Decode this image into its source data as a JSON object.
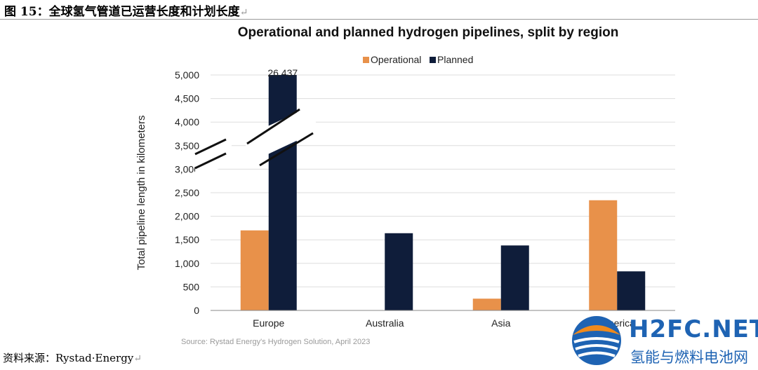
{
  "figure": {
    "caption": "图 15：全球氢气管道已运营长度和计划长度",
    "return_mark": "↵",
    "source_line": "资料来源：Rystad·Energy"
  },
  "colors": {
    "operational": "#E8914A",
    "planned": "#0F1D3A",
    "grid": "#DDDDDD",
    "axis": "#888888",
    "watermark_blue": "#1E63B3",
    "watermark_orange": "#F08A1C"
  },
  "watermark": {
    "logo_icon": "h2fc-logo-icon",
    "en": "H2FC.NET",
    "zh": "氢能与燃料电池网"
  },
  "chart_data": {
    "type": "bar",
    "title": "Operational and planned hydrogen pipelines, split by region",
    "ylabel": "Total pipeline length in kilometers",
    "xlabel": "",
    "categories": [
      "Europe",
      "Australia",
      "Asia",
      "America"
    ],
    "series": [
      {
        "name": "Operational",
        "values": [
          1700,
          0,
          250,
          2340
        ]
      },
      {
        "name": "Planned",
        "values": [
          26437,
          1640,
          1380,
          830
        ]
      }
    ],
    "ylim": [
      0,
      5000
    ],
    "yticks": [
      "0",
      "500",
      "1,000",
      "1,500",
      "2,000",
      "2,500",
      "3,000",
      "3,500",
      "4,000",
      "4,500",
      "5,000"
    ],
    "axis_break": "between 3,000 and 4,000",
    "data_labels": [
      {
        "category": "Europe",
        "series": "Planned",
        "label": "26,437"
      }
    ],
    "grid": true,
    "legend": "top-center",
    "source_note": "Source: Rystad Energy's Hydrogen Solution, April 2023"
  }
}
